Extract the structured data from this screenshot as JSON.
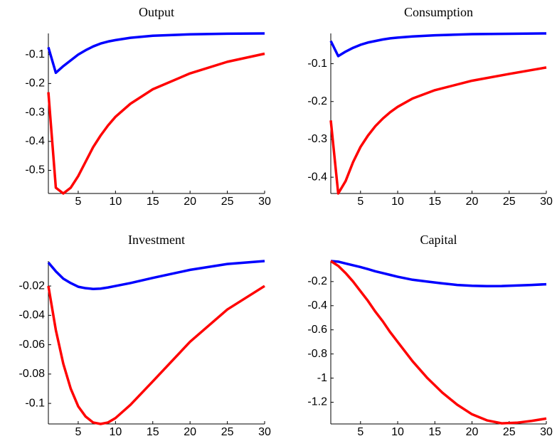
{
  "chart_data": [
    {
      "type": "line",
      "title": "Output",
      "x": [
        1,
        2,
        3,
        4,
        5,
        6,
        7,
        8,
        9,
        10,
        12,
        15,
        20,
        25,
        30
      ],
      "series": [
        {
          "color": "#0000ff",
          "values": [
            -0.075,
            -0.163,
            -0.14,
            -0.12,
            -0.1,
            -0.085,
            -0.072,
            -0.062,
            -0.055,
            -0.05,
            -0.042,
            -0.035,
            -0.03,
            -0.028,
            -0.027
          ]
        },
        {
          "color": "#ff0000",
          "values": [
            -0.23,
            -0.56,
            -0.58,
            -0.56,
            -0.52,
            -0.47,
            -0.42,
            -0.38,
            -0.345,
            -0.315,
            -0.27,
            -0.22,
            -0.165,
            -0.125,
            -0.097
          ]
        }
      ],
      "xlim": [
        1,
        30
      ],
      "ylim": [
        -0.58,
        -0.027
      ],
      "xticks": [
        5,
        10,
        15,
        20,
        25,
        30
      ],
      "yticks": [
        -0.5,
        -0.4,
        -0.3,
        -0.2,
        -0.1
      ]
    },
    {
      "type": "line",
      "title": "Consumption",
      "x": [
        1,
        2,
        3,
        4,
        5,
        6,
        7,
        8,
        9,
        10,
        12,
        15,
        20,
        25,
        30
      ],
      "series": [
        {
          "color": "#0000ff",
          "values": [
            -0.04,
            -0.08,
            -0.068,
            -0.058,
            -0.05,
            -0.044,
            -0.04,
            -0.036,
            -0.033,
            -0.031,
            -0.028,
            -0.025,
            -0.022,
            -0.021,
            -0.02
          ]
        },
        {
          "color": "#ff0000",
          "values": [
            -0.25,
            -0.443,
            -0.41,
            -0.36,
            -0.32,
            -0.29,
            -0.265,
            -0.245,
            -0.228,
            -0.214,
            -0.192,
            -0.17,
            -0.145,
            -0.127,
            -0.11
          ]
        }
      ],
      "xlim": [
        1,
        30
      ],
      "ylim": [
        -0.443,
        -0.02
      ],
      "xticks": [
        5,
        10,
        15,
        20,
        25,
        30
      ],
      "yticks": [
        -0.4,
        -0.3,
        -0.2,
        -0.1
      ]
    },
    {
      "type": "line",
      "title": "Investment",
      "x": [
        1,
        2,
        3,
        4,
        5,
        6,
        7,
        8,
        9,
        10,
        12,
        15,
        20,
        25,
        30
      ],
      "series": [
        {
          "color": "#0000ff",
          "values": [
            -0.004,
            -0.01,
            -0.015,
            -0.018,
            -0.0205,
            -0.0215,
            -0.022,
            -0.0218,
            -0.021,
            -0.02,
            -0.018,
            -0.0145,
            -0.009,
            -0.005,
            -0.003
          ]
        },
        {
          "color": "#ff0000",
          "values": [
            -0.02,
            -0.05,
            -0.073,
            -0.09,
            -0.102,
            -0.109,
            -0.113,
            -0.114,
            -0.113,
            -0.11,
            -0.101,
            -0.085,
            -0.058,
            -0.036,
            -0.02
          ]
        }
      ],
      "xlim": [
        1,
        30
      ],
      "ylim": [
        -0.114,
        -0.003
      ],
      "xticks": [
        5,
        10,
        15,
        20,
        25,
        30
      ],
      "yticks": [
        -0.1,
        -0.08,
        -0.06,
        -0.04,
        -0.02
      ]
    },
    {
      "type": "line",
      "title": "Capital",
      "x": [
        1,
        2,
        3,
        4,
        5,
        6,
        7,
        8,
        9,
        10,
        12,
        14,
        16,
        18,
        20,
        22,
        24,
        26,
        28,
        30
      ],
      "series": [
        {
          "color": "#0000ff",
          "values": [
            -0.03,
            -0.035,
            -0.05,
            -0.065,
            -0.08,
            -0.097,
            -0.115,
            -0.13,
            -0.145,
            -0.16,
            -0.185,
            -0.2,
            -0.215,
            -0.228,
            -0.235,
            -0.238,
            -0.237,
            -0.233,
            -0.228,
            -0.222
          ]
        },
        {
          "color": "#ff0000",
          "values": [
            -0.03,
            -0.07,
            -0.13,
            -0.2,
            -0.28,
            -0.36,
            -0.45,
            -0.53,
            -0.62,
            -0.7,
            -0.86,
            -1.0,
            -1.12,
            -1.22,
            -1.3,
            -1.35,
            -1.375,
            -1.37,
            -1.355,
            -1.335
          ]
        }
      ],
      "xlim": [
        1,
        30
      ],
      "ylim": [
        -1.38,
        -0.03
      ],
      "xticks": [
        5,
        10,
        15,
        20,
        25,
        30
      ],
      "yticks": [
        -1.2,
        -1,
        -0.8,
        -0.6,
        -0.4,
        -0.2
      ]
    }
  ]
}
